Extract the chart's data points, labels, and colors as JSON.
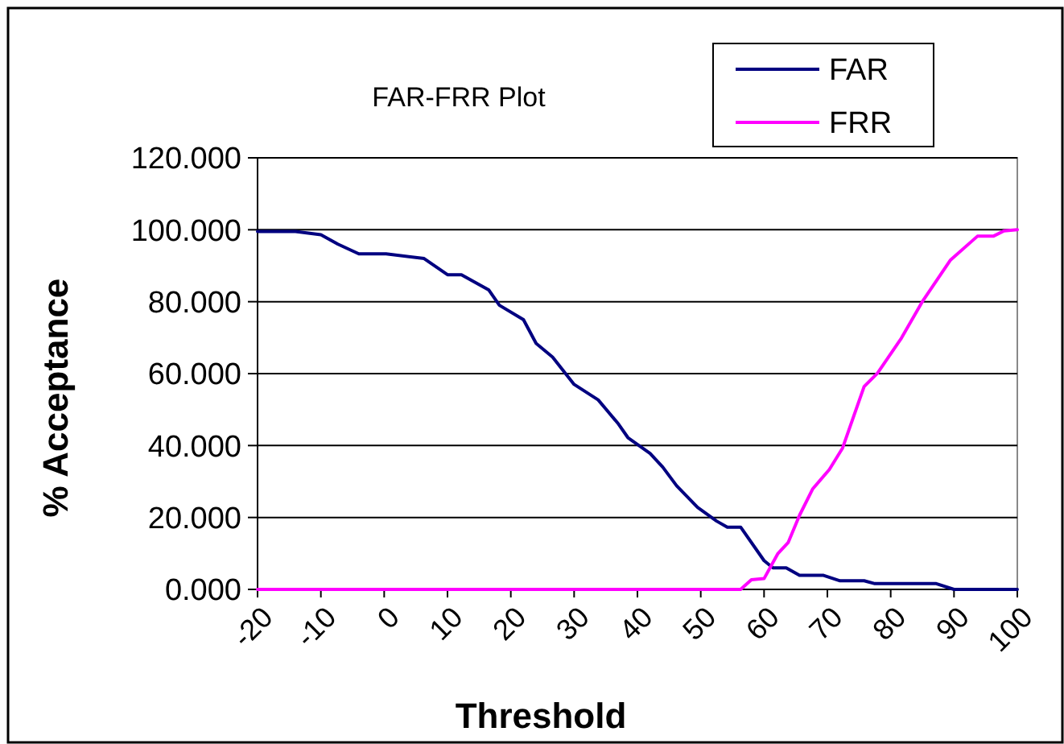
{
  "chart_data": {
    "type": "line",
    "title": "FAR-FRR Plot",
    "xlabel": "Threshold",
    "ylabel": "% Acceptance",
    "xlim": [
      -20,
      100
    ],
    "xticks": [
      -20,
      -10,
      0,
      10,
      20,
      30,
      40,
      50,
      60,
      70,
      80,
      90,
      100
    ],
    "ylim": [
      0,
      120
    ],
    "yticks": [
      {
        "value": 0,
        "label": "0.000"
      },
      {
        "value": 20,
        "label": "20.000"
      },
      {
        "value": 40,
        "label": "40.000"
      },
      {
        "value": 60,
        "label": "60.000"
      },
      {
        "value": 80,
        "label": "80.000"
      },
      {
        "value": 100,
        "label": "100.000"
      },
      {
        "value": 120,
        "label": "120.000"
      }
    ],
    "grid": "y",
    "legend": "top right",
    "marker": "none",
    "line_style": "solid",
    "series": [
      {
        "name": "FAR",
        "color": "#000080",
        "x": [
          -20,
          -14,
          -10,
          -7.3,
          -4,
          0.3,
          6.3,
          10,
          12.2,
          16.5,
          18.2,
          22,
          24,
          26.6,
          30,
          33.8,
          37,
          38.5,
          42,
          44,
          46.2,
          49.5,
          52.5,
          54.2,
          56.3,
          60,
          61.4,
          63.5,
          65.6,
          69.4,
          72,
          75.8,
          77.5,
          87.2,
          90,
          100
        ],
        "values": [
          99.5,
          99.5,
          98.6,
          96,
          93.3,
          93.3,
          92,
          87.5,
          87.5,
          83.3,
          79,
          75,
          68.4,
          64.6,
          57,
          52.7,
          46,
          42.2,
          37.8,
          34,
          28.8,
          22.8,
          19,
          17.3,
          17.3,
          8,
          6,
          6,
          3.9,
          3.9,
          2.4,
          2.4,
          1.6,
          1.6,
          0,
          0
        ]
      },
      {
        "name": "FRR",
        "color": "#ff00ff",
        "x": [
          -20,
          56.3,
          58,
          60,
          62.2,
          63.8,
          65.6,
          67.7,
          70.3,
          72.4,
          75.8,
          77.9,
          81.7,
          85.1,
          89.4,
          93.7,
          96.2,
          97.9,
          100
        ],
        "values": [
          0,
          0,
          2.7,
          3,
          10,
          13,
          20.6,
          28,
          33.3,
          39.3,
          56.4,
          60.1,
          69.9,
          80.3,
          91.5,
          98.2,
          98.2,
          99.7,
          100
        ]
      }
    ]
  }
}
